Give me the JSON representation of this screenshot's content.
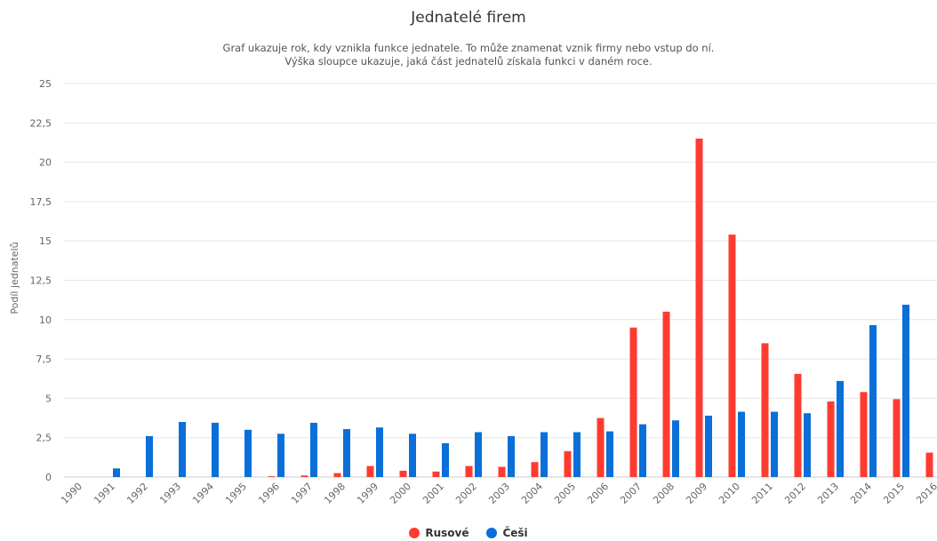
{
  "chart_data": {
    "type": "bar",
    "title": "Jednatelé firem",
    "subtitle": [
      "Graf ukazuje rok, kdy vznikla funkce jednatele. To může znamenat vznik firmy nebo vstup do ní.",
      "Výška sloupce ukazuje, jaká část jednatelů získala funkci v daném roce."
    ],
    "xlabel": "",
    "ylabel": "Podíl jednatelů",
    "ylim": [
      0,
      25
    ],
    "yticks": [
      "0",
      "2,5",
      "5",
      "7,5",
      "10",
      "12,5",
      "15",
      "17,5",
      "20",
      "22,5",
      "25"
    ],
    "categories": [
      "1990",
      "1991",
      "1992",
      "1993",
      "1994",
      "1995",
      "1996",
      "1997",
      "1998",
      "1999",
      "2000",
      "2001",
      "2002",
      "2003",
      "2004",
      "2005",
      "2006",
      "2007",
      "2008",
      "2009",
      "2010",
      "2011",
      "2012",
      "2013",
      "2014",
      "2015",
      "2016"
    ],
    "series": [
      {
        "name": "Rusové",
        "color": "#ff3b30",
        "values": [
          0,
          0,
          0,
          0,
          0,
          0,
          0.05,
          0.1,
          0.25,
          0.7,
          0.4,
          0.35,
          0.7,
          0.65,
          0.95,
          1.65,
          3.75,
          9.5,
          10.5,
          21.5,
          15.4,
          8.5,
          6.55,
          4.8,
          5.4,
          4.95,
          1.55
        ]
      },
      {
        "name": "Češi",
        "color": "#0a6fd8",
        "values": [
          0,
          0.55,
          2.6,
          3.5,
          3.45,
          3.0,
          2.75,
          3.45,
          3.05,
          3.15,
          2.75,
          2.15,
          2.85,
          2.6,
          2.85,
          2.85,
          2.9,
          3.35,
          3.6,
          3.9,
          4.15,
          4.15,
          4.05,
          6.1,
          9.65,
          10.95,
          0
        ]
      }
    ],
    "legend": "bottom-center",
    "grid": true
  }
}
